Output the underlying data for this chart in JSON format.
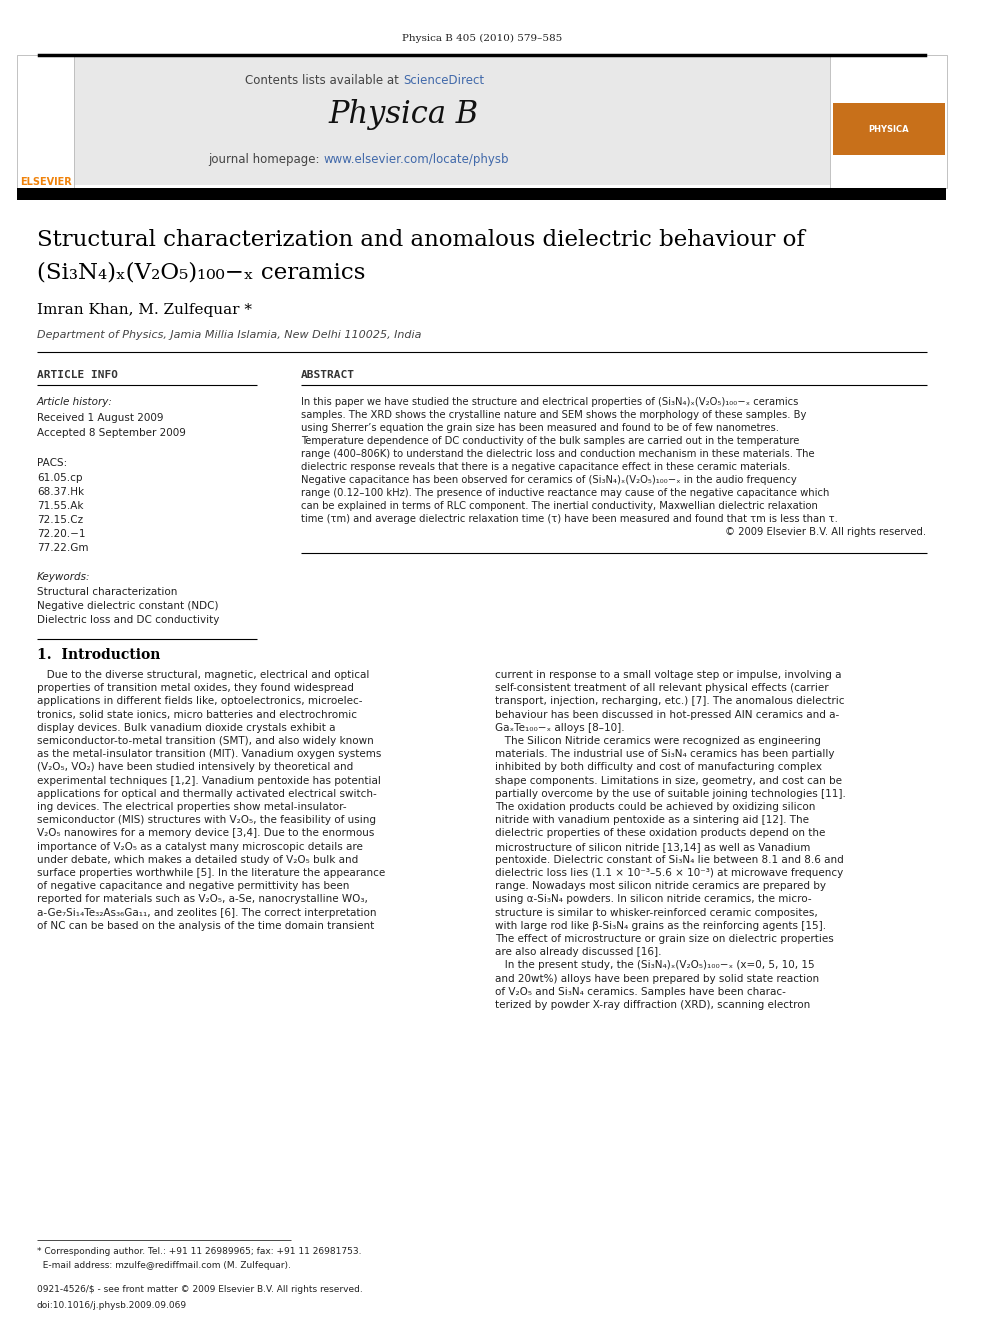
{
  "page_header": "Physica B 405 (2010) 579–585",
  "journal_header_text": "Contents lists available at ScienceDirect",
  "journal_name": "Physica B",
  "journal_homepage": "journal homepage: www.elsevier.com/locate/physb",
  "title_line1": "Structural characterization and anomalous dielectric behaviour of",
  "title_line2": "(Si₃N₄)ₓ(V₂O₅)₁₀₀−ₓ ceramics",
  "authors": "Imran Khan, M. Zulfequar *",
  "affiliation": "Department of Physics, Jamia Millia Islamia, New Delhi 110025, India",
  "article_info_header": "ARTICLE INFO",
  "abstract_header": "ABSTRACT",
  "article_history_label": "Article history:",
  "received": "Received 1 August 2009",
  "accepted": "Accepted 8 September 2009",
  "pacs_label": "PACS:",
  "pacs_codes": [
    "61.05.cp",
    "68.37.Hk",
    "71.55.Ak",
    "72.15.Cz",
    "72.20.−1",
    "77.22.Gm"
  ],
  "keywords_label": "Keywords:",
  "keywords": [
    "Structural characterization",
    "Negative dielectric constant (NDC)",
    "Dielectric loss and DC conductivity"
  ],
  "abstract_text": "In this paper we have studied the structure and electrical properties of (Si₃N₄)ₓ(V₂O₅)₁₀₀−ₓ ceramics samples. The XRD shows the crystalline nature and SEM shows the morphology of these samples. By using Sherrer’s equation the grain size has been measured and found to be of few nanometres. Temperature dependence of DC conductivity of the bulk samples are carried out in the temperature range (400–806K) to understand the dielectric loss and conduction mechanism in these materials. The dielectric response reveals that there is a negative capacitance effect in these ceramic materials. Negative capacitance has been observed for ceramics of (Si₃N₄)ₓ(V₂O₅)₁₀₀−ₓ in the audio frequency range (0.12–100 kHz). The presence of inductive reactance may cause of the negative capacitance which can be explained in terms of RLC component. The inertial conductivity, Maxwellian dielectric relaxation time (τm) and average dielectric relaxation time (τ) have been measured and found that τm is less than τ.\n© 2009 Elsevier B.V. All rights reserved.",
  "section1_title": "1.  Introduction",
  "intro_col1": "   Due to the diverse structural, magnetic, electrical and optical properties of transition metal oxides, they found widespread applications in different fields like, optoelectronics, microelectronics, solid state ionics, micro batteries and electrochromic display devices. Bulk vanadium dioxide crystals exhibit a semiconductor-to-metal transition (SMT), and also widely known as the metal-insulator transition (MIT). Vanadium oxygen systems (V₂O₅, VO₂) have been studied intensively by theoretical and experimental techniques [1,2]. Vanadium pentoxide has potential applications for optical and thermally activated electrical switching devices. The electrical properties show metal-insulator-semiconductor (MIS) structures with V₂O₅, the feasibility of using V₂O₅ nanowires for a memory device [3,4]. Due to the enormous importance of V₂O₅ as a catalyst many microscopic details are under debate, which makes a detailed study of V₂O₅ bulk and surface properties worthwhile [5]. In the literature the appearance of negative capacitance and negative permittivity has been reported for materials such as V₂O₅, a-Se, nanocrystalline WO₃, a-Ge₇Si₁₄Te₃₂As₃₆Ga₁₁, and zeolites [6]. The correct interpretation of NC can be based on the analysis of the time domain transient",
  "intro_col2": "current in response to a small voltage step or impulse, involving a self-consistent treatment of all relevant physical effects (carrier transport, injection, recharging, etc.) [7]. The anomalous dielectric behaviour has been discussed in hot-pressed AlN ceramics and a-GaₓTe₁₀₀−ₓ alloys [8–10].\n   The Silicon Nitride ceramics were recognized as engineering materials. The industrial use of Si₃N₄ ceramics has been partially inhibited by both difficulty and cost of manufacturing complex shape components. Limitations in size, geometry, and cost can be partially overcome by the use of suitable joining technologies [11]. The oxidation products could be achieved by oxidizing silicon nitride with vanadium pentoxide as a sintering aid [12]. The dielectric properties of these oxidation products depend on the microstructure of silicon nitride [13,14] as well as Vanadium pentoxide. Dielectric constant of Si₃N₄ lie between 8.1 and 8.6 and dielectric loss lies (1.1 × 10⁻³–5.6 × 10⁻³) at microwave frequency range. Nowadays most silicon nitride ceramics are prepared by using α-Si₃N₄ powders. In silicon nitride ceramics, the microstructure is similar to whisker-reinforced ceramic composites, with large rod like β-Si₃N₄ grains as the reinforcing agents [15]. The effect of microstructure or grain size on dielectric properties are also already discussed [16].\n   In the present study, the (Si₃N₄)ₓ(V₂O₅)₁₀₀−ₓ (x=0, 5, 10, 15 and 20wt%) alloys have been prepared by solid state reaction of V₂O₅ and Si₃N₄ ceramics. Samples have been characterized by powder X-ray diffraction (XRD), scanning electron",
  "footnote": "* Corresponding author. Tel.: +91 11 26989965; fax: +91 11 26981753.\n  E-mail address: mzulfe@rediffmail.com (M. Zulfequar).",
  "copyright_footer": "0921-4526/$ - see front matter © 2009 Elsevier B.V. All rights reserved.\ndoi:10.1016/j.physb.2009.09.069",
  "bg_color": "#ffffff",
  "header_gray": "#e8e8e8",
  "text_color": "#000000",
  "link_color": "#4169aa",
  "title_color": "#000000",
  "elsevier_orange": "#f0820a"
}
